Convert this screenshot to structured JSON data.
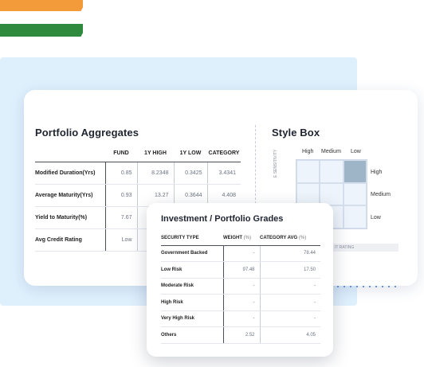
{
  "aggregates": {
    "title": "Portfolio Aggregates",
    "columns": [
      "FUND",
      "1Y HIGH",
      "1Y LOW",
      "CATEGORY"
    ],
    "rows": [
      {
        "label": "Modified Duration(Yrs)",
        "values": [
          "0.85",
          "8.2348",
          "0.3425",
          "3.4341"
        ]
      },
      {
        "label": "Average Maturity(Yrs)",
        "values": [
          "0.93",
          "13.27",
          "0.3644",
          "4.408"
        ]
      },
      {
        "label": "Yield to Maturity(%)",
        "values": [
          "7.67",
          "",
          "",
          ""
        ]
      },
      {
        "label": "Avg Credit Rating",
        "values": [
          "Low",
          "",
          "",
          ""
        ]
      }
    ]
  },
  "style_box": {
    "title": "Style Box",
    "col_labels": [
      "High",
      "Medium",
      "Low"
    ],
    "row_labels": [
      "High",
      "Medium",
      "Low"
    ],
    "vertical_label": "E SENSITIVITY",
    "bottom_label": "IT RATING",
    "active_cell": {
      "row": 0,
      "col": 2
    }
  },
  "grades": {
    "title": "Investment / Portfolio Grades",
    "col_security": "SECURITY TYPE",
    "col_weight": "WEIGHT",
    "col_weight_unit": "(%)",
    "col_category": "CATEGORY AVG",
    "col_category_unit": "(%)",
    "rows": [
      {
        "label": "Government Backed",
        "weight": "-",
        "category": "78.44"
      },
      {
        "label": "Low Risk",
        "weight": "97.48",
        "category": "17.50"
      },
      {
        "label": "Moderate Risk",
        "weight": "-",
        "category": "-"
      },
      {
        "label": "High Risk",
        "weight": "-",
        "category": "-"
      },
      {
        "label": "Very High Risk",
        "weight": "-",
        "category": "-"
      },
      {
        "label": "Others",
        "weight": "2.52",
        "category": "4.05"
      }
    ]
  },
  "colors": {
    "background_panel": "#dff0fd",
    "style_box_active": "#9eb5c7",
    "flag_saffron": "#f39a3a",
    "flag_green": "#2f8a3e"
  }
}
